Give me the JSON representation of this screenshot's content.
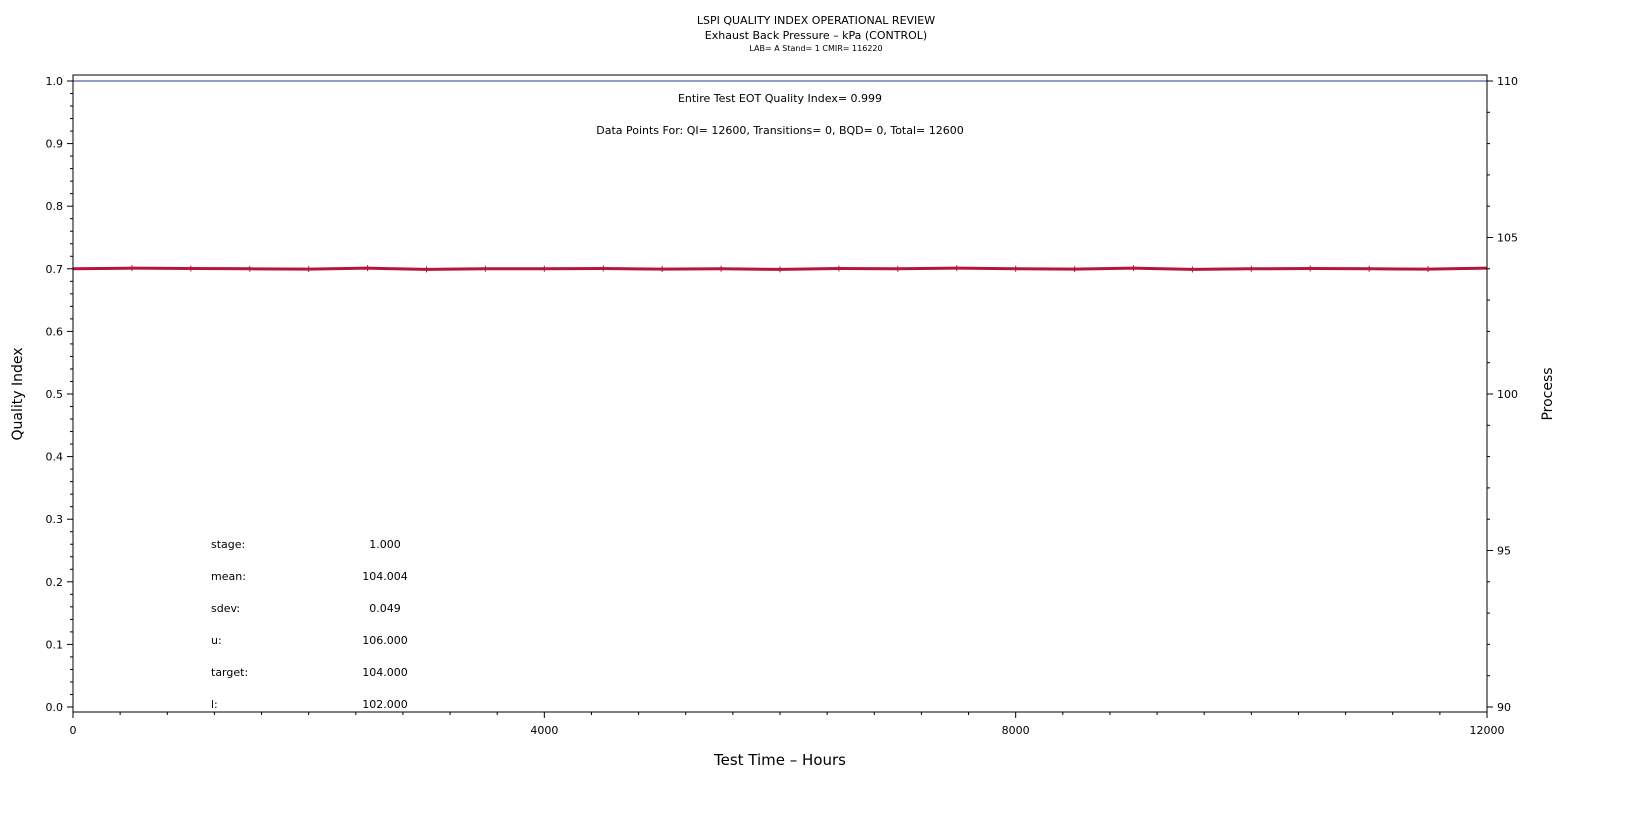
{
  "title": "LSPI QUALITY INDEX OPERATIONAL REVIEW",
  "subtitle": "Exhaust Back Pressure – kPa (CONTROL)",
  "subtitle2": "LAB= A Stand= 1 CMIR= 116220",
  "annotations": {
    "qi": "Entire Test EOT Quality Index=   0.999",
    "points": "Data Points For: QI= 12600, Transitions=      0, BQD=      0, Total= 12600"
  },
  "stats": [
    {
      "label": "stage:",
      "value": "1.000"
    },
    {
      "label": "mean:",
      "value": "104.004"
    },
    {
      "label": "sdev:",
      "value": "0.049"
    },
    {
      "label": "u:",
      "value": "106.000"
    },
    {
      "label": "target:",
      "value": "104.000"
    },
    {
      "label": "l:",
      "value": "102.000"
    }
  ],
  "chart_data": {
    "type": "line",
    "xlabel": "Test Time – Hours",
    "ylabel": "Quality Index",
    "y2label": "Process",
    "xlim": [
      0,
      12000
    ],
    "ylim": [
      0,
      1
    ],
    "y2lim": [
      90,
      110
    ],
    "xticks": [
      "0",
      "4000",
      "8000",
      "12000"
    ],
    "yticks": [
      "0.0",
      "0.1",
      "0.2",
      "0.3",
      "0.4",
      "0.5",
      "0.6",
      "0.7",
      "0.8",
      "0.9",
      "1.0"
    ],
    "y2ticks": [
      "90",
      "95",
      "100",
      "105",
      "110"
    ],
    "grid": false,
    "series": [
      {
        "axis": "left",
        "color": "#2b3990",
        "x": [
          0,
          12000
        ],
        "y": [
          1.0,
          1.0
        ]
      },
      {
        "axis": "right",
        "color": "#b5163a",
        "x": [
          0,
          500,
          1000,
          1500,
          2000,
          2500,
          3000,
          3500,
          4000,
          4500,
          5000,
          5500,
          6000,
          6500,
          7000,
          7500,
          8000,
          8500,
          9000,
          9500,
          10000,
          10500,
          11000,
          11500,
          12000
        ],
        "y": [
          104.0,
          104.02,
          104.01,
          104.0,
          103.99,
          104.02,
          103.98,
          104.0,
          104.0,
          104.01,
          103.99,
          104.0,
          103.98,
          104.01,
          104.0,
          104.02,
          104.0,
          103.99,
          104.02,
          103.98,
          104.0,
          104.01,
          104.0,
          103.99,
          104.02
        ]
      }
    ]
  }
}
